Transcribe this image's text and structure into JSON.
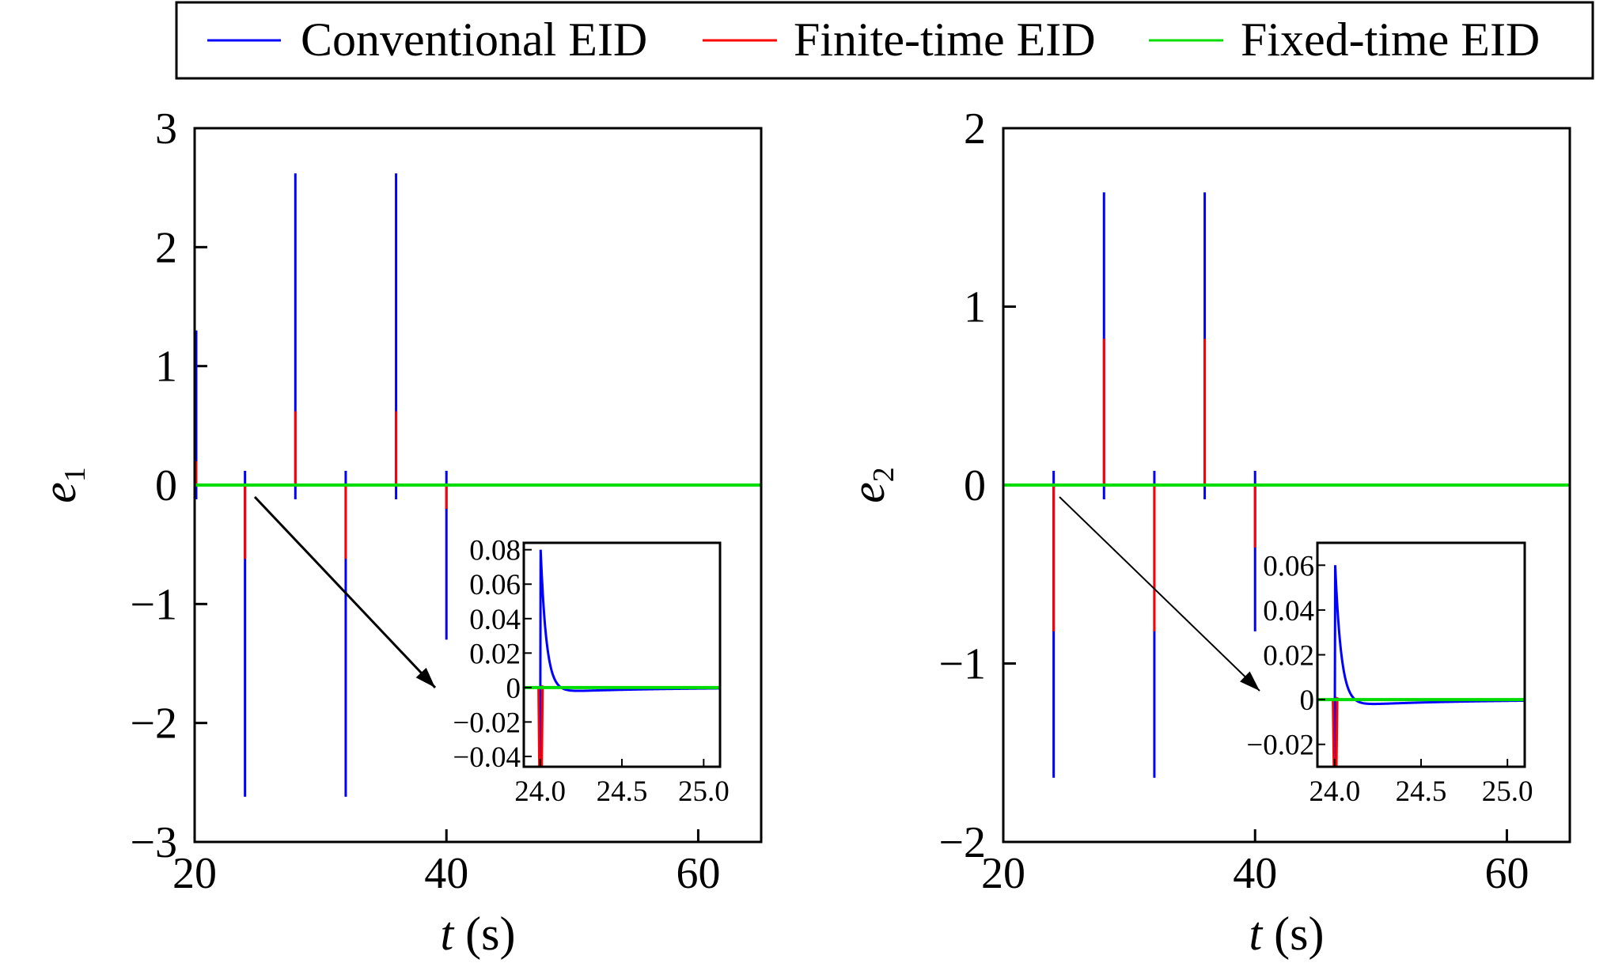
{
  "legend": [
    {
      "label": "Conventional EID",
      "color": "#0000ff"
    },
    {
      "label": "Finite-time EID",
      "color": "#ff0000"
    },
    {
      "label": "Fixed-time EID",
      "color": "#00dd00"
    }
  ],
  "colors": {
    "conventional": "#0000ff",
    "finite": "#ff0000",
    "fixed": "#00dd00",
    "axes": "#000000"
  },
  "chart_data": [
    {
      "type": "line",
      "xlabel_var": "t",
      "xlabel_unit": "(s)",
      "ylabel_var": "e",
      "ylabel_sub": "1",
      "xlim": [
        20,
        65
      ],
      "ylim": [
        -3,
        3
      ],
      "xticks": [
        20,
        40,
        60
      ],
      "xtick_labels": [
        "20",
        "40",
        "60"
      ],
      "yticks": [
        3,
        2,
        1,
        0,
        -1,
        -2,
        -3
      ],
      "ytick_labels": [
        "3",
        "2",
        "1",
        "0",
        "−1",
        "−2",
        "−3"
      ],
      "spike_times": [
        20,
        24,
        28,
        32,
        36,
        40
      ],
      "series": [
        {
          "name": "Conventional EID",
          "spike_peaks": [
            1.3,
            -2.62,
            2.62,
            -2.62,
            2.62,
            -1.3
          ]
        },
        {
          "name": "Finite-time EID",
          "spike_peaks": [
            0.2,
            -0.62,
            0.62,
            -0.62,
            0.62,
            -0.2
          ]
        },
        {
          "name": "Fixed-time EID",
          "spike_peaks": [
            0,
            0,
            0,
            0,
            0,
            0
          ]
        }
      ],
      "inset": {
        "xlim": [
          23.9,
          25.1
        ],
        "ylim": [
          -0.046,
          0.084
        ],
        "xticks": [
          24.0,
          24.5,
          25.0
        ],
        "xtick_labels": [
          "24.0",
          "24.5",
          "25.0"
        ],
        "yticks": [
          0.08,
          0.06,
          0.04,
          0.02,
          0,
          -0.02,
          -0.04
        ],
        "ytick_labels": [
          "0.08",
          "0.06",
          "0.04",
          "0.02",
          "0",
          "−0.02",
          "−0.04"
        ],
        "conventional_peak": 0.08,
        "conventional_undershoot": -0.003,
        "finite_dip": -0.05
      }
    },
    {
      "type": "line",
      "xlabel_var": "t",
      "xlabel_unit": "(s)",
      "ylabel_var": "e",
      "ylabel_sub": "2",
      "xlim": [
        20,
        65
      ],
      "ylim": [
        -2,
        2
      ],
      "xticks": [
        20,
        40,
        60
      ],
      "xtick_labels": [
        "20",
        "40",
        "60"
      ],
      "yticks": [
        2,
        1,
        0,
        -1,
        -2
      ],
      "ytick_labels": [
        "2",
        "1",
        "0",
        "−1",
        "−2"
      ],
      "spike_times": [
        24,
        28,
        32,
        36,
        40
      ],
      "series": [
        {
          "name": "Conventional EID",
          "spike_peaks": [
            -1.64,
            1.64,
            -1.64,
            1.64,
            -0.82
          ]
        },
        {
          "name": "Finite-time EID",
          "spike_peaks": [
            -0.82,
            0.82,
            -0.82,
            0.82,
            -0.35
          ]
        },
        {
          "name": "Fixed-time EID",
          "spike_peaks": [
            0,
            0,
            0,
            0,
            0
          ]
        }
      ],
      "inset": {
        "xlim": [
          23.9,
          25.1
        ],
        "ylim": [
          -0.03,
          0.07
        ],
        "xticks": [
          24.0,
          24.5,
          25.0
        ],
        "xtick_labels": [
          "24.0",
          "24.5",
          "25.0"
        ],
        "yticks": [
          0.06,
          0.04,
          0.02,
          0,
          -0.02
        ],
        "ytick_labels": [
          "0.06",
          "0.04",
          "0.02",
          "0",
          "−0.02"
        ],
        "conventional_peak": 0.06,
        "conventional_undershoot": -0.003,
        "finite_dip": -0.035
      }
    }
  ]
}
